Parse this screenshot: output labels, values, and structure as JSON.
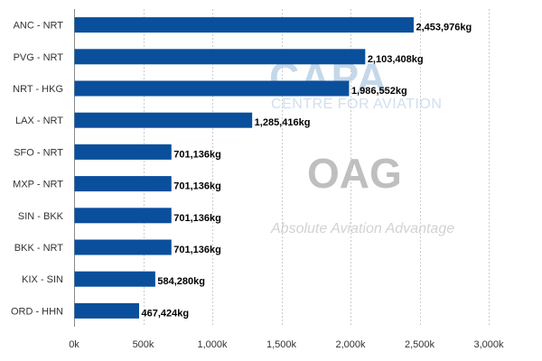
{
  "chart_data": {
    "type": "bar",
    "orientation": "horizontal",
    "categories": [
      "ANC - NRT",
      "PVG - NRT",
      "NRT - HKG",
      "LAX - NRT",
      "SFO - NRT",
      "MXP - NRT",
      "SIN - BKK",
      "BKK - NRT",
      "KIX - SIN",
      "ORD - HHN"
    ],
    "values": [
      2453976,
      2103408,
      1986552,
      1285416,
      701136,
      701136,
      701136,
      701136,
      584280,
      467424
    ],
    "value_labels": [
      "2,453,976kg",
      "2,103,408kg",
      "1,986,552kg",
      "1,285,416kg",
      "701,136kg",
      "701,136kg",
      "701,136kg",
      "701,136kg",
      "584,280kg",
      "467,424kg"
    ],
    "xlim": [
      0,
      3000000
    ],
    "x_ticks": [
      0,
      500000,
      1000000,
      1500000,
      2000000,
      2500000,
      3000000
    ],
    "x_tick_labels": [
      "0k",
      "500k",
      "1,000k",
      "1,500k",
      "2,000k",
      "2,500k",
      "3,000k"
    ],
    "bar_color": "#0a4f9c",
    "grid": "vertical dashed",
    "title": "",
    "xlabel": "",
    "ylabel": ""
  },
  "watermarks": {
    "capa": "CAPA",
    "capa_sub": "CENTRE FOR AVIATION",
    "oag": "OAG",
    "oag_tagline": "Absolute Aviation Advantage"
  }
}
